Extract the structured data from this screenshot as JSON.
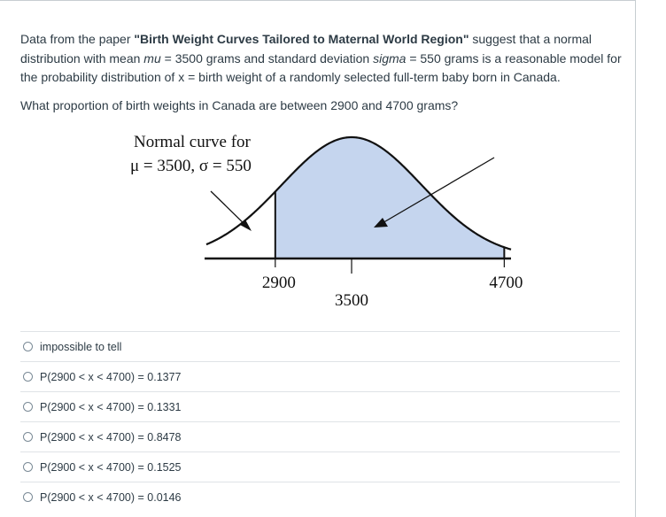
{
  "question": {
    "p1_a": "Data from the paper ",
    "p1_title": "\"Birth Weight Curves Tailored to Maternal World Region\"",
    "p1_b": " suggest that a normal distribution with mean ",
    "p1_mu": "mu",
    "p1_c": " = 3500 grams and standard deviation ",
    "p1_sigma": "sigma",
    "p1_d": " = 550 grams is a reasonable model for the probability distribution of x = birth weight of a randomly selected full-term baby born in Canada.",
    "p2": "What proportion of birth weights in Canada are between 2900 and 4700 grams?"
  },
  "figure": {
    "label_line1": "Normal curve for",
    "label_line2": "μ = 3500, σ = 550",
    "mean": 3500,
    "sd": 550,
    "shade_from": 2900,
    "shade_to": 4700,
    "tick_labels": [
      "2900",
      "3500",
      "4700"
    ],
    "shade_color": "#c5d5ee"
  },
  "answers": [
    {
      "label": "impossible to tell"
    },
    {
      "label": "P(2900 < x < 4700) = 0.1377"
    },
    {
      "label": "P(2900 < x < 4700) = 0.1331"
    },
    {
      "label": "P(2900 < x < 4700) = 0.8478"
    },
    {
      "label": "P(2900 < x < 4700) = 0.1525"
    },
    {
      "label": "P(2900 < x < 4700) = 0.0146"
    }
  ]
}
